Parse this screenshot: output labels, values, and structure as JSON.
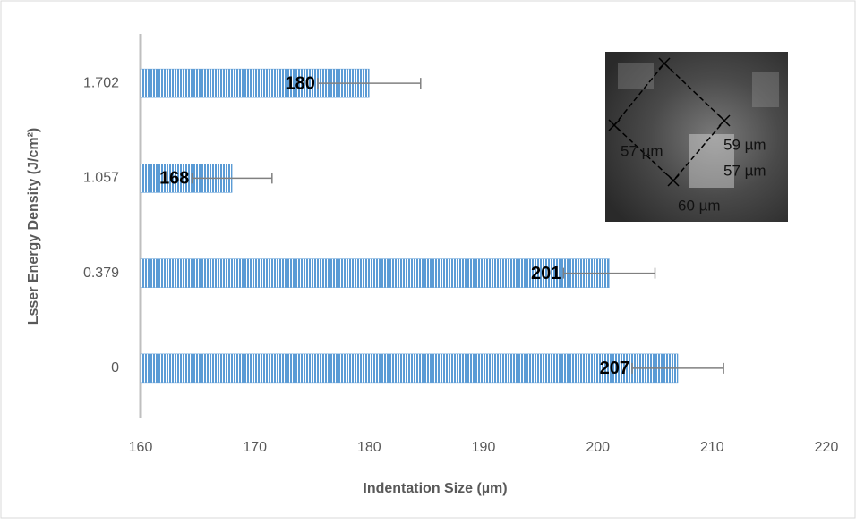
{
  "chart_data": {
    "type": "barh",
    "x_label": "Indentation Size (µm)",
    "y_label": "Lsser Energy Density (J/cm²)",
    "categories": [
      "0",
      "0.379",
      "1.057",
      "1.702"
    ],
    "values": [
      207,
      201,
      168,
      180
    ],
    "errors": [
      4,
      4,
      3.5,
      4.5
    ],
    "color": "#5b9bd5",
    "xlim": [
      160,
      220
    ],
    "xticks": [
      160,
      170,
      180,
      190,
      200,
      210,
      220
    ],
    "annotations": [
      "57 µm",
      "59 µm",
      "57 µm",
      "60 µm"
    ]
  }
}
